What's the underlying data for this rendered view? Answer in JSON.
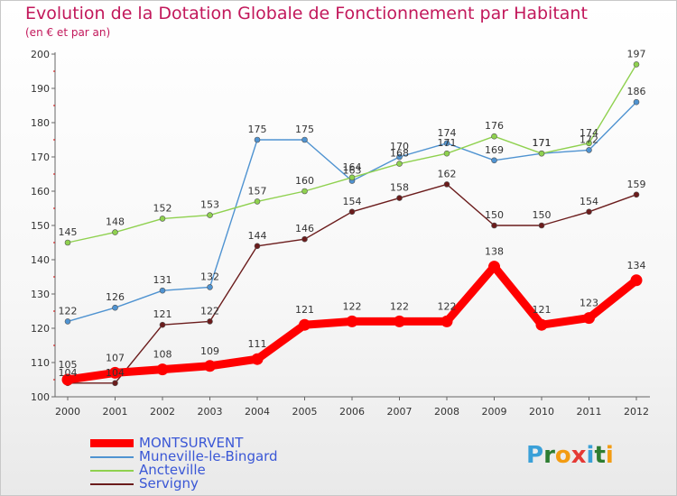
{
  "title": "Evolution de la Dotation Globale de Fonctionnement par Habitant",
  "subtitle": "(en € et par an)",
  "logo": {
    "text": "Proxiti",
    "letters": [
      {
        "ch": "P",
        "color": "#3aa0d8"
      },
      {
        "ch": "r",
        "color": "#2e7d32"
      },
      {
        "ch": "o",
        "color": "#f39c12"
      },
      {
        "ch": "x",
        "color": "#e53935"
      },
      {
        "ch": "i",
        "color": "#3aa0d8"
      },
      {
        "ch": "t",
        "color": "#2e7d32"
      },
      {
        "ch": "i",
        "color": "#f39c12"
      }
    ]
  },
  "chart_data": {
    "type": "line",
    "title": "Evolution de la Dotation Globale de Fonctionnement par Habitant",
    "subtitle": "(en € et par an)",
    "x": [
      "2000",
      "2001",
      "2002",
      "2003",
      "2004",
      "2005",
      "2006",
      "2007",
      "2008",
      "2009",
      "2010",
      "2011",
      "2012"
    ],
    "ylim": [
      100,
      200
    ],
    "yticks": [
      "100",
      "110",
      "120",
      "130",
      "140",
      "150",
      "160",
      "170",
      "180",
      "190",
      "200"
    ],
    "grid": false,
    "legend_position": "bottom-left",
    "series": [
      {
        "name": "MONTSURVENT",
        "color": "#ff0000",
        "highlight": true,
        "values": [
          105,
          107,
          108,
          109,
          111,
          121,
          122,
          122,
          122,
          138,
          121,
          123,
          134
        ],
        "labels": [
          "105",
          "107",
          "108",
          "109",
          "111",
          "121",
          "122",
          "122",
          "122",
          "138",
          "121",
          "123",
          "134"
        ]
      },
      {
        "name": "Muneville-le-Bingard",
        "color": "#4f93d1",
        "highlight": false,
        "values": [
          122,
          126,
          131,
          132,
          175,
          175,
          163,
          170,
          174,
          169,
          171,
          172,
          186
        ],
        "labels": [
          "122",
          "126",
          "131",
          "132",
          "175",
          "175",
          "163",
          "170",
          "174",
          "169",
          "171",
          "172",
          "186"
        ]
      },
      {
        "name": "Ancteville",
        "color": "#8fd14f",
        "highlight": false,
        "values": [
          145,
          148,
          152,
          153,
          157,
          160,
          164,
          168,
          171,
          176,
          171,
          174,
          197
        ],
        "labels": [
          "145",
          "148",
          "152",
          "153",
          "157",
          "160",
          "164",
          "168",
          "171",
          "176",
          "171",
          "174",
          "197"
        ]
      },
      {
        "name": "Servigny",
        "color": "#6b1c1c",
        "highlight": false,
        "values": [
          104,
          104,
          121,
          122,
          144,
          146,
          154,
          158,
          162,
          150,
          150,
          154,
          159
        ],
        "labels": [
          "104",
          "104",
          "121",
          "122",
          "144",
          "146",
          "154",
          "158",
          "162",
          "150",
          "150",
          "154",
          "159"
        ]
      }
    ]
  }
}
